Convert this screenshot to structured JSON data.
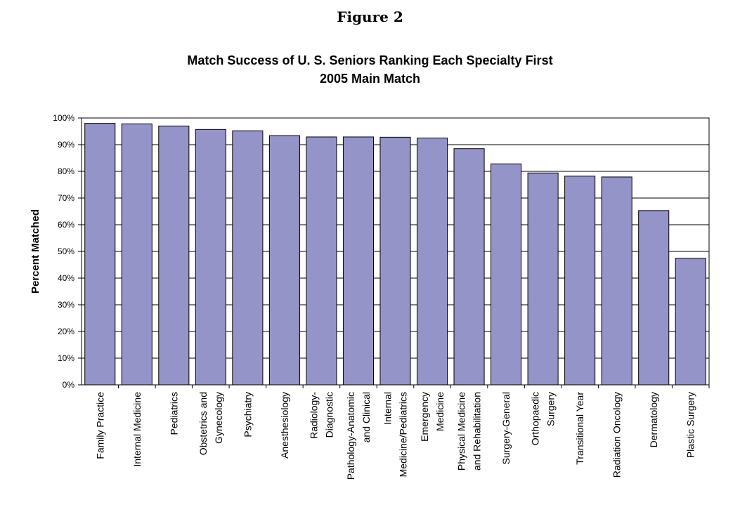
{
  "figure_label": "Figure 2",
  "chart_data": {
    "type": "bar",
    "title": "Match Success of U. S. Seniors Ranking Each Specialty First",
    "subtitle": "2005 Main Match",
    "xlabel": "",
    "ylabel": "Percent Matched",
    "ylim": [
      0,
      100
    ],
    "yticks": [
      "0%",
      "10%",
      "20%",
      "30%",
      "40%",
      "50%",
      "60%",
      "70%",
      "80%",
      "90%",
      "100%"
    ],
    "grid": "horizontal",
    "bar_color": "#9594c9",
    "categories": [
      [
        "Family Practice"
      ],
      [
        "Internal Medicine"
      ],
      [
        "Pediatrics"
      ],
      [
        "Obstetrics and",
        "Gynecology"
      ],
      [
        "Psychiatry"
      ],
      [
        "Anesthesiology"
      ],
      [
        "Radiology-",
        "Diagnostic"
      ],
      [
        "Pathology-Anatomic",
        "and Clinical"
      ],
      [
        "Internal",
        "Medicine/Pediatrics"
      ],
      [
        "Emergency",
        "Medicine"
      ],
      [
        "Physical Medicine",
        "and Rehabilitation"
      ],
      [
        "Surgery-General"
      ],
      [
        "Orthopaedic",
        "Surgery"
      ],
      [
        "Transitional Year"
      ],
      [
        "Radiation Oncology"
      ],
      [
        "Dermatology"
      ],
      [
        "Plastic Surgery"
      ]
    ],
    "values": [
      98.0,
      97.8,
      97.0,
      95.7,
      95.2,
      93.4,
      92.9,
      92.9,
      92.8,
      92.5,
      88.5,
      82.8,
      79.4,
      78.2,
      77.9,
      65.3,
      47.4
    ]
  }
}
